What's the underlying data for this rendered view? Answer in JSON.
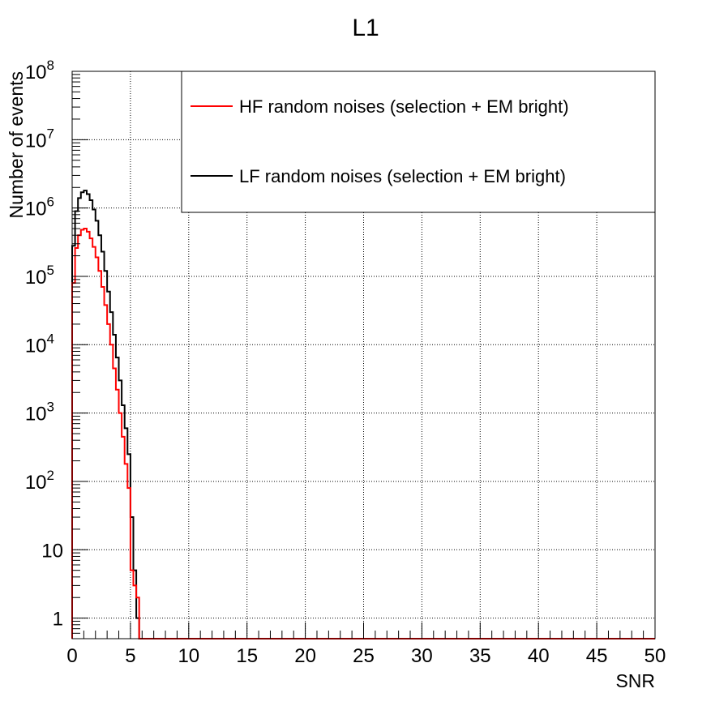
{
  "chart_data": {
    "type": "line",
    "title": "L1",
    "xlabel": "SNR",
    "ylabel": "Number of events",
    "xlim": [
      0,
      50
    ],
    "ylim": [
      0.5,
      100000000
    ],
    "yscale": "log",
    "grid": true,
    "legend_position": "top-right",
    "x_ticks": [
      "0",
      "5",
      "10",
      "15",
      "20",
      "25",
      "30",
      "35",
      "40",
      "45",
      "50"
    ],
    "y_ticks": [
      {
        "value": 1,
        "base": "1",
        "exp": ""
      },
      {
        "value": 10,
        "base": "10",
        "exp": ""
      },
      {
        "value": 100,
        "base": "10",
        "exp": "2"
      },
      {
        "value": 1000,
        "base": "10",
        "exp": "3"
      },
      {
        "value": 10000,
        "base": "10",
        "exp": "4"
      },
      {
        "value": 100000,
        "base": "10",
        "exp": "5"
      },
      {
        "value": 1000000,
        "base": "10",
        "exp": "6"
      },
      {
        "value": 10000000,
        "base": "10",
        "exp": "7"
      },
      {
        "value": 100000000,
        "base": "10",
        "exp": "8"
      }
    ],
    "bin_width": 0.25,
    "series": [
      {
        "name": "HF random noises (selection + EM bright)",
        "color": "#ff0000",
        "x": [
          0,
          0.25,
          0.5,
          0.75,
          1,
          1.25,
          1.5,
          1.75,
          2,
          2.25,
          2.5,
          2.75,
          3,
          3.25,
          3.5,
          3.75,
          4,
          4.25,
          4.5,
          4.75,
          5,
          5.25,
          5.5,
          5.75
        ],
        "values": [
          80000,
          260000,
          400000,
          480000,
          500000,
          450000,
          360000,
          270000,
          190000,
          120000,
          70000,
          38000,
          20000,
          10000,
          4500,
          2200,
          1000,
          450,
          180,
          80,
          5,
          3,
          2,
          0.5
        ]
      },
      {
        "name": "LF random noises (selection + EM bright)",
        "color": "#000000",
        "x": [
          0,
          0.25,
          0.5,
          0.75,
          1,
          1.25,
          1.5,
          1.75,
          2,
          2.25,
          2.5,
          2.75,
          3,
          3.25,
          3.5,
          3.75,
          4,
          4.25,
          4.5,
          4.75,
          5,
          5.25,
          5.5,
          5.75
        ],
        "values": [
          280000,
          900000,
          1400000,
          1700000,
          1800000,
          1600000,
          1300000,
          950000,
          650000,
          400000,
          230000,
          120000,
          60000,
          30000,
          14000,
          6500,
          3000,
          1300,
          600,
          250,
          30,
          5,
          1,
          0.5
        ]
      }
    ]
  }
}
